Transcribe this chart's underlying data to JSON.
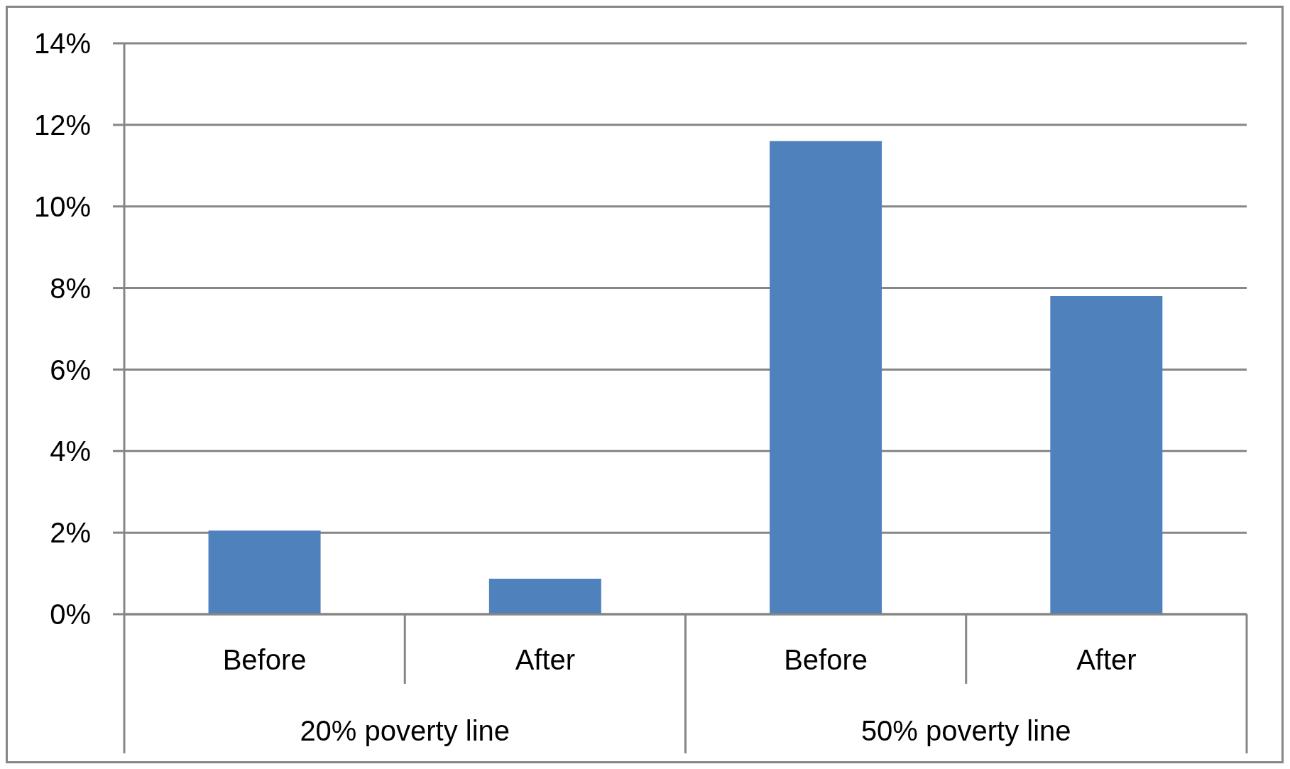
{
  "chart_data": {
    "type": "bar",
    "categories": [
      "Before",
      "After",
      "Before",
      "After"
    ],
    "values": [
      2.05,
      0.87,
      11.6,
      7.8
    ],
    "color": "#4f81bd",
    "ylim": [
      0,
      14
    ],
    "yticks": [
      {
        "value": 0,
        "label": "0%"
      },
      {
        "value": 2,
        "label": "2%"
      },
      {
        "value": 4,
        "label": "4%"
      },
      {
        "value": 6,
        "label": "6%"
      },
      {
        "value": 8,
        "label": "8%"
      },
      {
        "value": 10,
        "label": "10%"
      },
      {
        "value": 12,
        "label": "12%"
      },
      {
        "value": 14,
        "label": "14%"
      }
    ],
    "grid": "y",
    "annotations": [
      "20% poverty line",
      "50% poverty line"
    ]
  }
}
